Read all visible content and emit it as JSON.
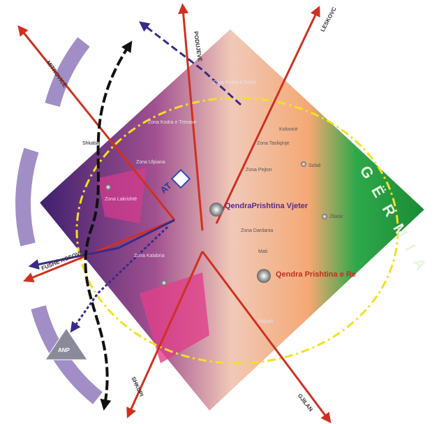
{
  "directions": [
    "MITROVICË",
    "PODUJEVË",
    "LESKOVC",
    "FUSHË KOSOVË",
    "SHKUPI",
    "GJILAN"
  ],
  "zones": [
    "Zona Kodra e Diellit",
    "Zona Kodra e Trimave",
    "Zona Ulpiana",
    "Zona Lakrishtë",
    "Zona Tasliqinje",
    "Zona Pejton",
    "Zona Dardania",
    "Zona Kalabria"
  ],
  "places": [
    "Shkabaj",
    "Kolovicë",
    "Sofali",
    "Zllatar",
    "Mati",
    "Hajvali",
    "AT",
    "ANP"
  ],
  "centers": [
    "QendraPrishtina Vjeter",
    "Qendra Prishtina e Re"
  ],
  "region": "GËRMIA"
}
